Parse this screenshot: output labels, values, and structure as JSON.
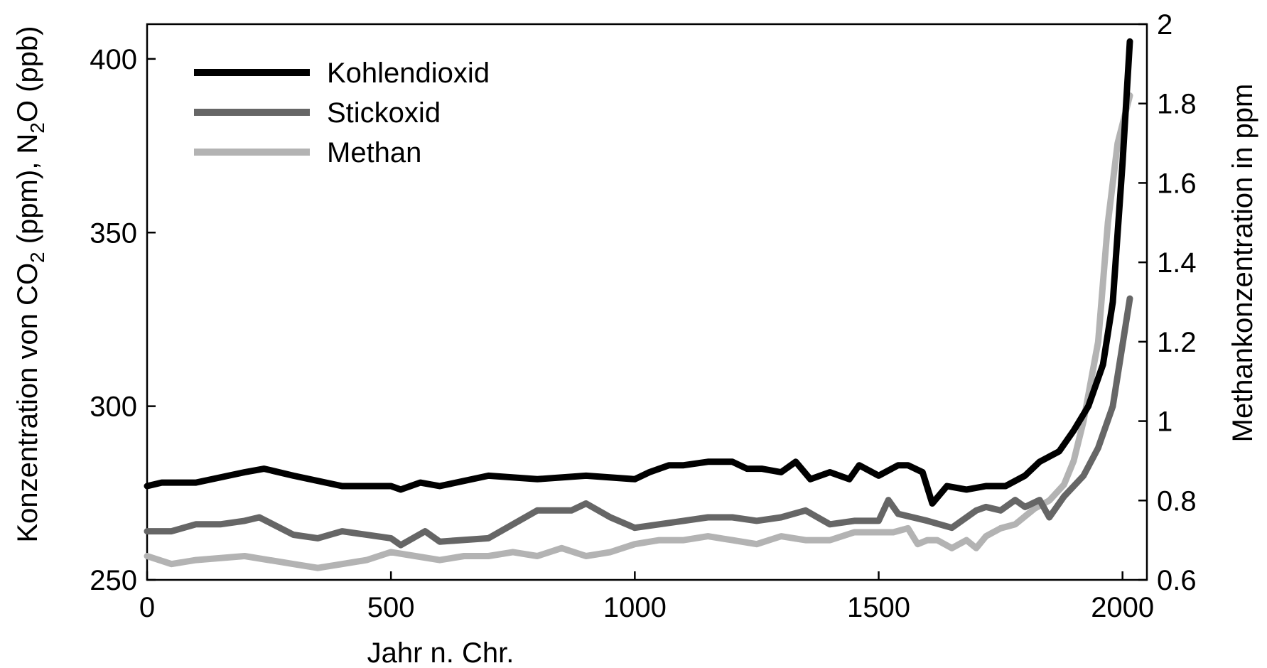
{
  "chart_data": {
    "type": "line",
    "xlabel": "Jahr n. Chr.",
    "ylabel_left": {
      "parts": [
        "Konzentration von CO",
        "2",
        " (ppm), N",
        "2",
        "O (ppb)"
      ]
    },
    "ylabel_right": "Methankonzentration in ppm",
    "xlim": [
      0,
      2050
    ],
    "ylim_left": [
      250,
      410
    ],
    "ylim_right": [
      0.6,
      2.0
    ],
    "x_ticks": [
      0,
      500,
      1000,
      1500,
      2000
    ],
    "x_tick_labels": [
      "0",
      "500",
      "1000",
      "1500",
      "2000"
    ],
    "y_left_ticks": [
      250,
      300,
      350,
      400
    ],
    "y_left_tick_labels": [
      "250",
      "300",
      "350",
      "400"
    ],
    "y_right_ticks": [
      0.6,
      0.8,
      1.0,
      1.2,
      1.4,
      1.6,
      1.8,
      2.0
    ],
    "y_right_tick_labels": [
      "0.6",
      "0.8",
      "1",
      "1.2",
      "1.4",
      "1.6",
      "1.8",
      "2"
    ],
    "grid": false,
    "legend_position": "top-left",
    "series": [
      {
        "name": "Kohlendioxid",
        "axis": "left",
        "color": "#000000",
        "x": [
          0,
          30,
          100,
          200,
          240,
          300,
          400,
          500,
          520,
          560,
          600,
          700,
          800,
          900,
          1000,
          1030,
          1070,
          1100,
          1150,
          1200,
          1230,
          1260,
          1300,
          1330,
          1360,
          1400,
          1440,
          1460,
          1500,
          1540,
          1560,
          1590,
          1610,
          1640,
          1680,
          1720,
          1760,
          1800,
          1830,
          1870,
          1900,
          1930,
          1960,
          1980,
          2000,
          2015
        ],
        "y": [
          277,
          278,
          278,
          281,
          282,
          280,
          277,
          277,
          276,
          278,
          277,
          280,
          279,
          280,
          279,
          281,
          283,
          283,
          284,
          284,
          282,
          282,
          281,
          284,
          279,
          281,
          279,
          283,
          280,
          283,
          283,
          281,
          272,
          277,
          276,
          277,
          277,
          280,
          284,
          287,
          293,
          300,
          312,
          330,
          370,
          405
        ]
      },
      {
        "name": "Stickoxid",
        "axis": "left",
        "color": "#666666",
        "x": [
          0,
          50,
          100,
          150,
          200,
          230,
          300,
          350,
          400,
          500,
          520,
          570,
          600,
          700,
          750,
          800,
          870,
          900,
          950,
          1000,
          1100,
          1150,
          1200,
          1250,
          1300,
          1350,
          1400,
          1450,
          1500,
          1520,
          1540,
          1600,
          1650,
          1700,
          1720,
          1750,
          1780,
          1800,
          1830,
          1850,
          1880,
          1920,
          1950,
          1980,
          2015
        ],
        "y": [
          264,
          264,
          266,
          266,
          267,
          268,
          263,
          262,
          264,
          262,
          260,
          264,
          261,
          262,
          266,
          270,
          270,
          272,
          268,
          265,
          267,
          268,
          268,
          267,
          268,
          270,
          266,
          267,
          267,
          273,
          269,
          267,
          265,
          270,
          271,
          270,
          273,
          271,
          273,
          268,
          274,
          280,
          288,
          300,
          331
        ]
      },
      {
        "name": "Methan",
        "axis": "right",
        "color": "#b3b3b3",
        "x": [
          0,
          50,
          100,
          200,
          300,
          350,
          400,
          450,
          500,
          550,
          600,
          650,
          700,
          750,
          800,
          850,
          900,
          950,
          1000,
          1050,
          1100,
          1150,
          1200,
          1250,
          1300,
          1350,
          1400,
          1450,
          1500,
          1530,
          1560,
          1580,
          1600,
          1620,
          1650,
          1680,
          1700,
          1720,
          1750,
          1780,
          1800,
          1820,
          1850,
          1880,
          1900,
          1920,
          1950,
          1970,
          1990,
          2015
        ],
        "y": [
          0.66,
          0.64,
          0.65,
          0.66,
          0.64,
          0.63,
          0.64,
          0.65,
          0.67,
          0.66,
          0.65,
          0.66,
          0.66,
          0.67,
          0.66,
          0.68,
          0.66,
          0.67,
          0.69,
          0.7,
          0.7,
          0.71,
          0.7,
          0.69,
          0.71,
          0.7,
          0.7,
          0.72,
          0.72,
          0.72,
          0.73,
          0.69,
          0.7,
          0.7,
          0.68,
          0.7,
          0.68,
          0.71,
          0.73,
          0.74,
          0.76,
          0.78,
          0.8,
          0.84,
          0.9,
          1.0,
          1.2,
          1.5,
          1.7,
          1.82
        ]
      }
    ]
  }
}
